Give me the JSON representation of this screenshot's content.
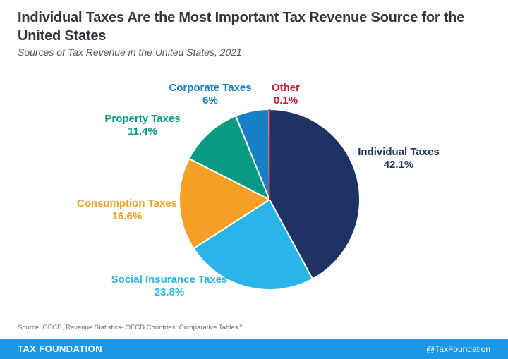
{
  "header": {
    "title": "Individual Taxes Are the Most Important Tax Revenue Source for the United States",
    "subtitle": "Sources of Tax Revenue in the United States, 2021"
  },
  "chart_data": {
    "type": "pie",
    "title": "Sources of Tax Revenue in the United States, 2021",
    "start_angle_deg": 0,
    "direction": "clockwise",
    "total": 100,
    "slices": [
      {
        "label": "Individual Taxes",
        "pct_label": "42.1%",
        "value": 42.1,
        "color": "#1f3264"
      },
      {
        "label": "Social Insurance Taxes",
        "pct_label": "23.8%",
        "value": 23.8,
        "color": "#29b5e8"
      },
      {
        "label": "Consumption Taxes",
        "pct_label": "16.6%",
        "value": 16.6,
        "color": "#f4a026"
      },
      {
        "label": "Property Taxes",
        "pct_label": "11.4%",
        "value": 11.4,
        "color": "#089b83"
      },
      {
        "label": "Corporate Taxes",
        "pct_label": "6%",
        "value": 6.0,
        "color": "#1780c4"
      },
      {
        "label": "Other",
        "pct_label": "0.1%",
        "value": 0.1,
        "color": "#c41e33"
      }
    ],
    "slice_border_color": "#ffffff",
    "legend": "none"
  },
  "source_note": "Source: OECD, Revenue Statistics- OECD Countries: Comparative Tables.\"",
  "footer": {
    "brand": "TAX FOUNDATION",
    "handle": "@TaxFoundation",
    "bar_color": "#1b97e7"
  }
}
